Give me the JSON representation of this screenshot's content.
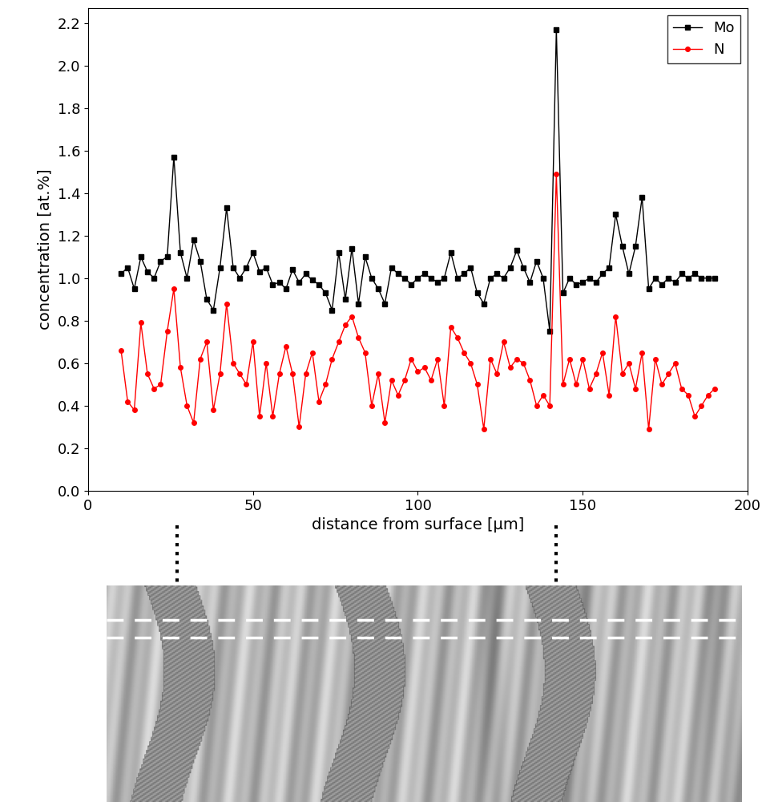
{
  "chart_data": {
    "type": "line",
    "x_label": "distance from surface [µm]",
    "y_label": "concentration [at.%]",
    "xlim": [
      0,
      200
    ],
    "xticks": [
      0,
      50,
      100,
      150,
      200
    ],
    "ylim": [
      0,
      2.27
    ],
    "yticks": [
      0.0,
      0.2,
      0.4,
      0.6,
      0.8,
      1.0,
      1.2,
      1.4,
      1.6,
      1.8,
      2.0,
      2.2
    ],
    "legend": "upper right",
    "reference_lines_x": [
      27,
      142
    ],
    "x": [
      10,
      12,
      14,
      16,
      18,
      20,
      22,
      24,
      26,
      28,
      30,
      32,
      34,
      36,
      38,
      40,
      42,
      44,
      46,
      48,
      50,
      52,
      54,
      56,
      58,
      60,
      62,
      64,
      66,
      68,
      70,
      72,
      74,
      76,
      78,
      80,
      82,
      84,
      86,
      88,
      90,
      92,
      94,
      96,
      98,
      100,
      102,
      104,
      106,
      108,
      110,
      112,
      114,
      116,
      118,
      120,
      122,
      124,
      126,
      128,
      130,
      132,
      134,
      136,
      138,
      140,
      142,
      144,
      146,
      148,
      150,
      152,
      154,
      156,
      158,
      160,
      162,
      164,
      166,
      168,
      170,
      172,
      174,
      176,
      178,
      180,
      182,
      184,
      186,
      188,
      190
    ],
    "series": [
      {
        "name": "Mo",
        "color": "#000000",
        "marker": "square",
        "line_style": "solid",
        "values": [
          1.02,
          1.05,
          0.95,
          1.1,
          1.03,
          1.0,
          1.08,
          1.1,
          1.57,
          1.12,
          1.0,
          1.18,
          1.08,
          0.9,
          0.85,
          1.05,
          1.33,
          1.05,
          1.0,
          1.05,
          1.12,
          1.03,
          1.05,
          0.97,
          0.98,
          0.95,
          1.04,
          0.98,
          1.02,
          0.99,
          0.97,
          0.93,
          0.85,
          1.12,
          0.9,
          1.14,
          0.88,
          1.1,
          1.0,
          0.95,
          0.88,
          1.05,
          1.02,
          1.0,
          0.97,
          1.0,
          1.02,
          1.0,
          0.98,
          1.0,
          1.12,
          1.0,
          1.02,
          1.05,
          0.93,
          0.88,
          1.0,
          1.02,
          1.0,
          1.05,
          1.13,
          1.05,
          0.98,
          1.08,
          1.0,
          0.75,
          2.17,
          0.93,
          1.0,
          0.97,
          0.98,
          1.0,
          0.98,
          1.02,
          1.05,
          1.3,
          1.15,
          1.02,
          1.15,
          1.38,
          0.95,
          1.0,
          0.97,
          1.0,
          0.98,
          1.02,
          1.0,
          1.02,
          1.0,
          1.0,
          1.0
        ]
      },
      {
        "name": "N",
        "color": "#ff0000",
        "marker": "circle",
        "line_style": "solid",
        "values": [
          0.66,
          0.42,
          0.38,
          0.79,
          0.55,
          0.48,
          0.5,
          0.75,
          0.95,
          0.58,
          0.4,
          0.32,
          0.62,
          0.7,
          0.38,
          0.55,
          0.88,
          0.6,
          0.55,
          0.5,
          0.7,
          0.35,
          0.6,
          0.35,
          0.55,
          0.68,
          0.55,
          0.3,
          0.55,
          0.65,
          0.42,
          0.5,
          0.62,
          0.7,
          0.78,
          0.82,
          0.72,
          0.65,
          0.4,
          0.55,
          0.32,
          0.52,
          0.45,
          0.52,
          0.62,
          0.56,
          0.58,
          0.52,
          0.62,
          0.4,
          0.77,
          0.72,
          0.65,
          0.6,
          0.5,
          0.29,
          0.62,
          0.55,
          0.7,
          0.58,
          0.62,
          0.6,
          0.52,
          0.4,
          0.45,
          0.4,
          1.49,
          0.5,
          0.62,
          0.5,
          0.62,
          0.48,
          0.55,
          0.65,
          0.45,
          0.82,
          0.55,
          0.6,
          0.48,
          0.65,
          0.29,
          0.62,
          0.5,
          0.55,
          0.6,
          0.48,
          0.45,
          0.35,
          0.4,
          0.45,
          0.48
        ]
      }
    ]
  }
}
